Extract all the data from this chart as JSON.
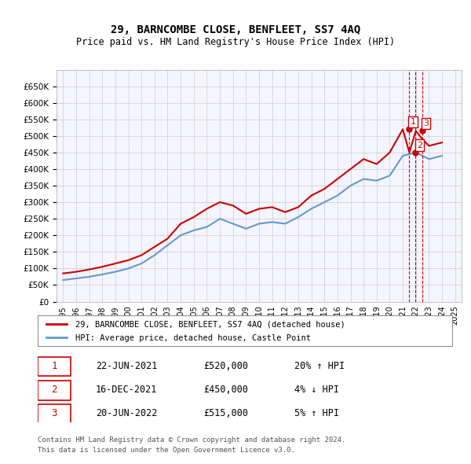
{
  "title": "29, BARNCOMBE CLOSE, BENFLEET, SS7 4AQ",
  "subtitle": "Price paid vs. HM Land Registry's House Price Index (HPI)",
  "legend_line1": "29, BARNCOMBE CLOSE, BENFLEET, SS7 4AQ (detached house)",
  "legend_line2": "HPI: Average price, detached house, Castle Point",
  "footer1": "Contains HM Land Registry data © Crown copyright and database right 2024.",
  "footer2": "This data is licensed under the Open Government Licence v3.0.",
  "transactions": [
    {
      "num": 1,
      "date": "22-JUN-2021",
      "price": "£520,000",
      "pct": "20% ↑ HPI"
    },
    {
      "num": 2,
      "date": "16-DEC-2021",
      "price": "£450,000",
      "pct": "4% ↓ HPI"
    },
    {
      "num": 3,
      "date": "20-JUN-2022",
      "price": "£515,000",
      "pct": "5% ↑ HPI"
    }
  ],
  "red_color": "#cc0000",
  "blue_color": "#6699cc",
  "grid_color": "#cccccc",
  "background_color": "#ffffff",
  "plot_bg": "#f5f5ff",
  "ylim": [
    0,
    700000
  ],
  "yticks": [
    0,
    50000,
    100000,
    150000,
    200000,
    250000,
    300000,
    350000,
    400000,
    450000,
    500000,
    550000,
    600000,
    650000
  ],
  "hpi_x": [
    1995,
    1996,
    1997,
    1998,
    1999,
    2000,
    2001,
    2002,
    2003,
    2004,
    2005,
    2006,
    2007,
    2008,
    2009,
    2010,
    2011,
    2012,
    2013,
    2014,
    2015,
    2016,
    2017,
    2018,
    2019,
    2020,
    2021,
    2022,
    2023,
    2024
  ],
  "hpi_y": [
    65000,
    70000,
    75000,
    82000,
    90000,
    100000,
    115000,
    140000,
    170000,
    200000,
    215000,
    225000,
    250000,
    235000,
    220000,
    235000,
    240000,
    235000,
    255000,
    280000,
    300000,
    320000,
    350000,
    370000,
    365000,
    380000,
    440000,
    450000,
    430000,
    440000
  ],
  "red_x": [
    1995,
    1996,
    1997,
    1998,
    1999,
    2000,
    2001,
    2002,
    2003,
    2004,
    2005,
    2006,
    2007,
    2008,
    2009,
    2010,
    2011,
    2012,
    2013,
    2014,
    2015,
    2016,
    2017,
    2018,
    2019,
    2020,
    2021,
    2021.5,
    2022,
    2022.5,
    2023,
    2024
  ],
  "red_y": [
    85000,
    90000,
    97000,
    105000,
    115000,
    125000,
    140000,
    165000,
    190000,
    235000,
    255000,
    280000,
    300000,
    290000,
    265000,
    280000,
    285000,
    270000,
    285000,
    320000,
    340000,
    370000,
    400000,
    430000,
    415000,
    450000,
    520000,
    450000,
    515000,
    490000,
    470000,
    480000
  ],
  "marker_dates": [
    2021.47,
    2021.96,
    2022.47
  ],
  "marker_vals": [
    520000,
    450000,
    515000
  ],
  "marker_labels": [
    "1",
    "2",
    "3"
  ],
  "xmin": 1994.5,
  "xmax": 2025.5,
  "xticks": [
    1995,
    1996,
    1997,
    1998,
    1999,
    2000,
    2001,
    2002,
    2003,
    2004,
    2005,
    2006,
    2007,
    2008,
    2009,
    2010,
    2011,
    2012,
    2013,
    2014,
    2015,
    2016,
    2017,
    2018,
    2019,
    2020,
    2021,
    2022,
    2023,
    2024,
    2025
  ]
}
